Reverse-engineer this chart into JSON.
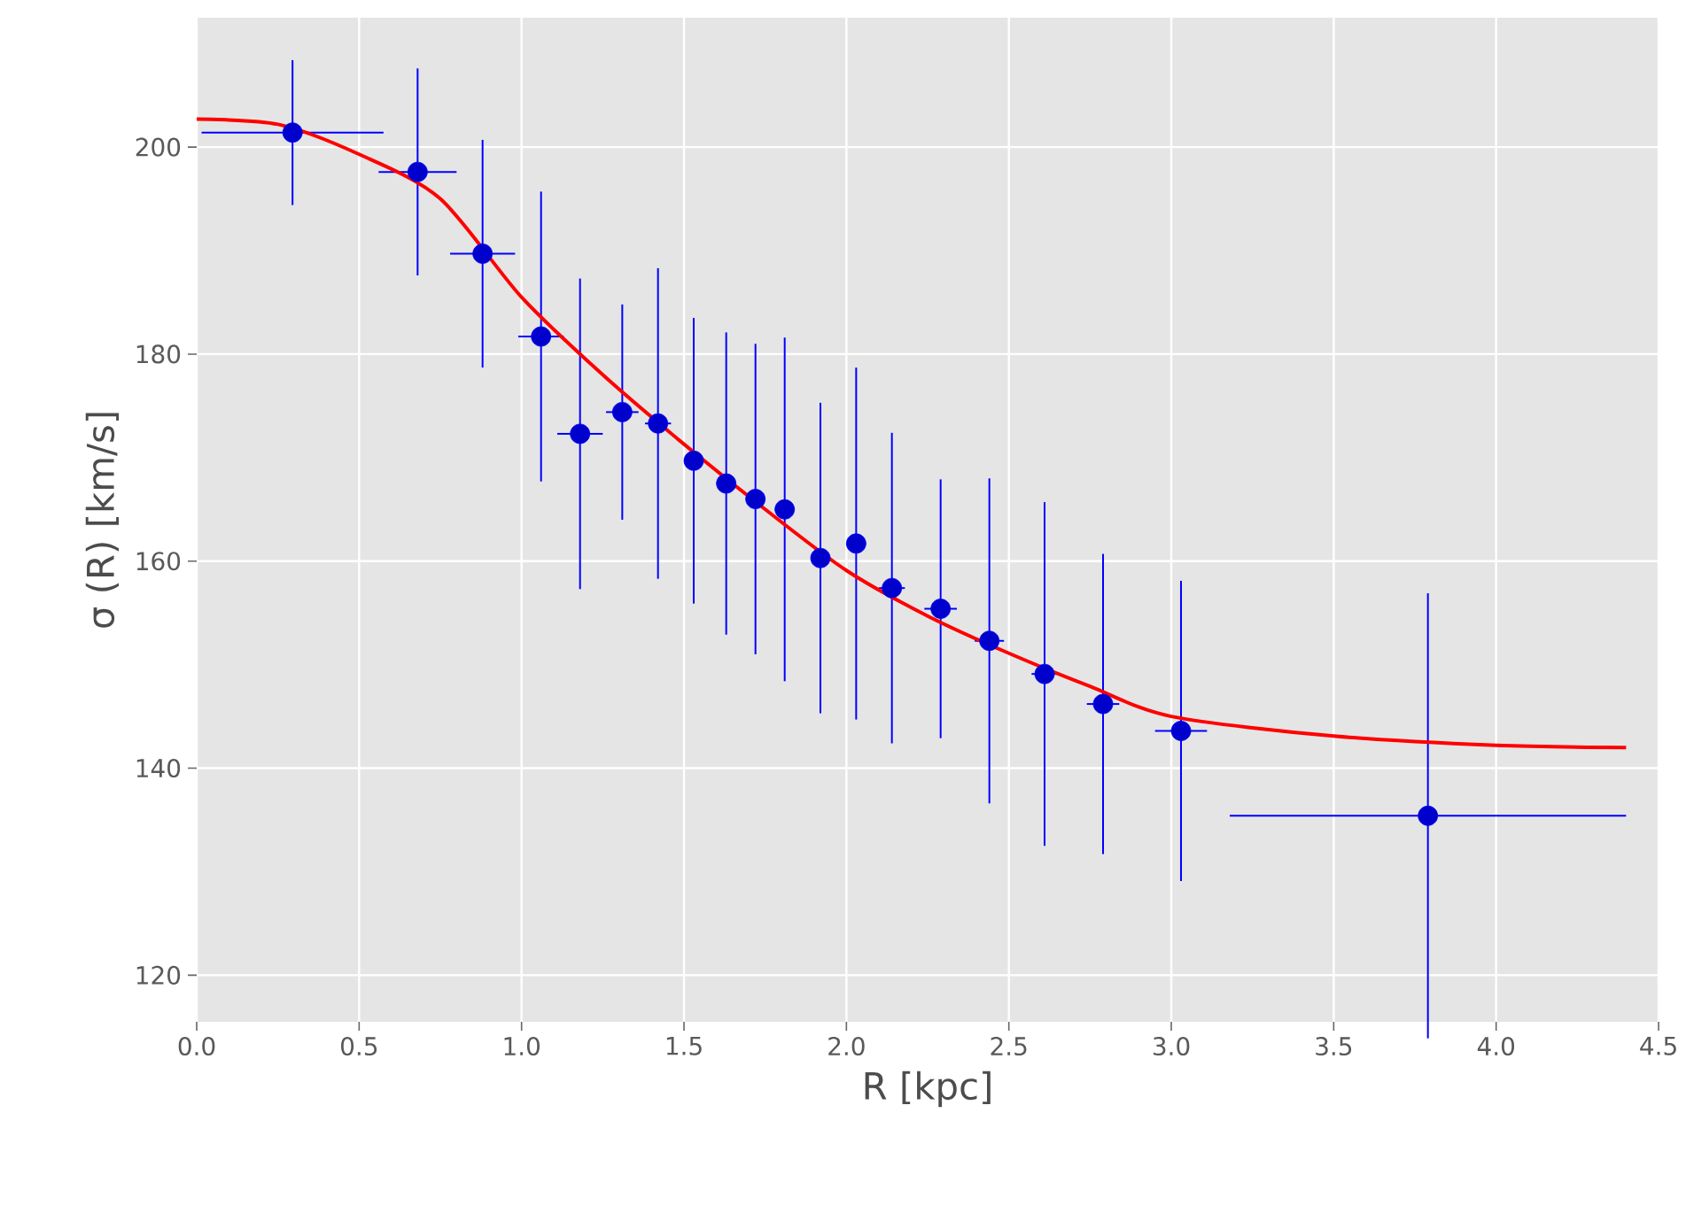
{
  "chart_data": {
    "type": "scatter",
    "xlabel": "R [kpc]",
    "ylabel": "σ (R) [km/s]",
    "xlim": [
      0,
      4.5
    ],
    "ylim": [
      115.5,
      212.5
    ],
    "xticks": [
      {
        "value": 0,
        "label": "0.0"
      },
      0.5,
      {
        "value": 1,
        "label": "1.0"
      },
      1.5,
      {
        "value": 2,
        "label": "2.0"
      },
      2.5,
      {
        "value": 3,
        "label": "3.0"
      },
      3.5,
      {
        "value": 4,
        "label": "4.0"
      },
      4.5
    ],
    "yticks": [
      120,
      140,
      160,
      180,
      200
    ],
    "grid": true,
    "series": [
      {
        "color": "#0000ff",
        "marker": "circle",
        "x": [
          0.295,
          0.68,
          0.88,
          1.06,
          1.18,
          1.31,
          1.42,
          1.53,
          1.63,
          1.72,
          1.81,
          1.92,
          2.03,
          2.14,
          2.29,
          2.44,
          2.61,
          2.79,
          3.03,
          3.79
        ],
        "values": [
          201.4,
          197.6,
          189.7,
          181.7,
          172.3,
          174.4,
          173.3,
          169.7,
          167.5,
          166.0,
          165.0,
          160.3,
          161.7,
          157.4,
          155.4,
          152.3,
          149.1,
          146.2,
          143.6,
          135.4
        ],
        "errors": [
          7,
          10,
          11,
          14,
          15,
          10.4,
          15,
          13.8,
          14.6,
          15,
          16.6,
          15,
          17,
          15,
          12.5,
          15.7,
          16.6,
          14.5,
          14.5,
          21.5
        ],
        "xerrors": [
          0.28,
          0.12,
          0.1,
          0.07,
          0.07,
          0.05,
          0.04,
          0.03,
          0.03,
          0.03,
          0.03,
          0.03,
          0.03,
          0.04,
          0.05,
          0.045,
          0.04,
          0.05,
          0.08,
          0.61
        ]
      },
      {
        "type": "line",
        "color": "#ff0000",
        "marker": "none",
        "line_style": "solid",
        "x": [
          0,
          0.25,
          0.5,
          0.75,
          1.0,
          1.25,
          1.5,
          1.75,
          2.0,
          2.25,
          2.5,
          2.75,
          3.0,
          3.5,
          4.0,
          4.4
        ],
        "values": [
          202.7,
          202.2,
          199.3,
          195,
          185.5,
          178,
          171.3,
          165,
          159.1,
          154.7,
          151.1,
          147.9,
          145,
          143.1,
          142.2,
          142.0
        ]
      }
    ]
  }
}
